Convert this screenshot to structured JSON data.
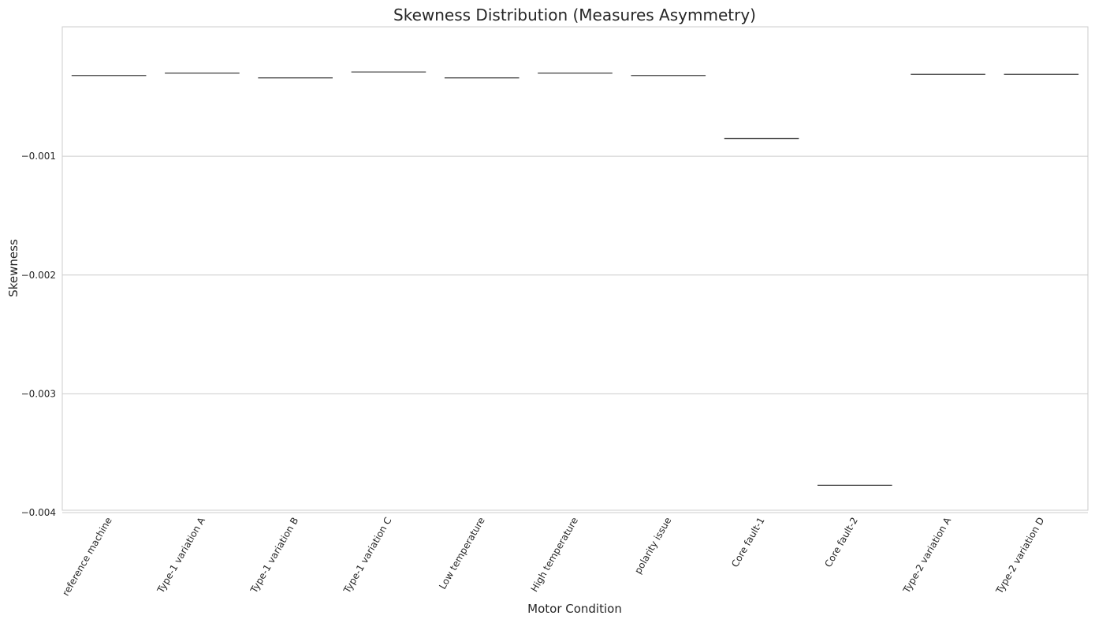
{
  "chart_data": {
    "type": "box",
    "title": "Skewness Distribution (Measures Asymmetry)",
    "xlabel": "Motor Condition",
    "ylabel": "Skewness",
    "categories": [
      "reference machine",
      "Type-1 variation A",
      "Type-1 variation B",
      "Type-1 variation C",
      "Low temperature",
      "High temperature",
      "polarity issue",
      "Core fault-1",
      "Core fault-2",
      "Type-2 variation A",
      "Type-2 variation D"
    ],
    "values": [
      -0.00032,
      -0.0003,
      -0.00034,
      -0.00029,
      -0.00034,
      -0.0003,
      -0.00032,
      -0.00085,
      -0.00377,
      -0.00031,
      -0.00031
    ],
    "ylim": [
      -0.00398,
      9e-05
    ],
    "yticks": [
      -0.001,
      -0.002,
      -0.003,
      -0.004
    ],
    "ytick_labels": [
      "−0.001",
      "−0.002",
      "−0.003",
      "−0.004"
    ],
    "grid": true,
    "legend": "none",
    "colors": {
      "box": "#3f3f3f",
      "grid": "#cccccc",
      "text": "#262626"
    }
  }
}
